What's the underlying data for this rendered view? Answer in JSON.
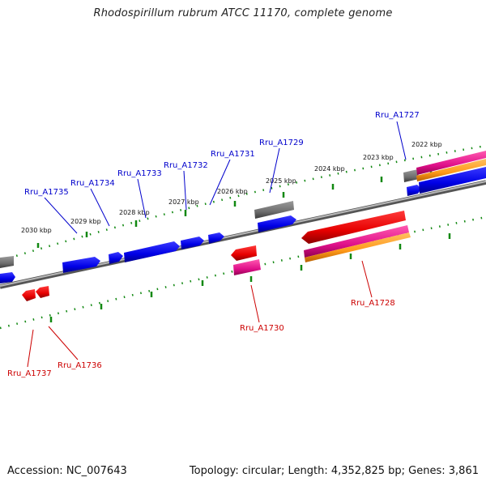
{
  "title": "Rhodospirillum rubrum ATCC 11170, complete genome",
  "footer": {
    "accession": "Accession: NC_007643",
    "stats": "Topology: circular; Length: 4,352,825 bp; Genes: 3,861"
  },
  "colors": {
    "forward_gene": "#1010ee",
    "reverse_gene": "#ee1010",
    "rna_gene": "#ee1188",
    "misc_feature": "#ff9922",
    "pseudo": "#777777",
    "backbone": "#888888",
    "ticks": "#118811",
    "forward_label": "#0000cc",
    "reverse_label": "#cc0000"
  },
  "kbp_labels": [
    "2022 kbp",
    "2023 kbp",
    "2024 kbp",
    "2025 kbp",
    "2026 kbp",
    "2027 kbp",
    "2028 kbp",
    "2029 kbp",
    "2030 kbp"
  ],
  "gene_labels": {
    "forward": [
      "Rru_A1727",
      "Rru_A1729",
      "Rru_A1731",
      "Rru_A1732",
      "Rru_A1733",
      "Rru_A1734",
      "Rru_A1735"
    ],
    "reverse": [
      "Rru_A1728",
      "Rru_A1730",
      "Rru_A1736",
      "Rru_A1737"
    ]
  }
}
